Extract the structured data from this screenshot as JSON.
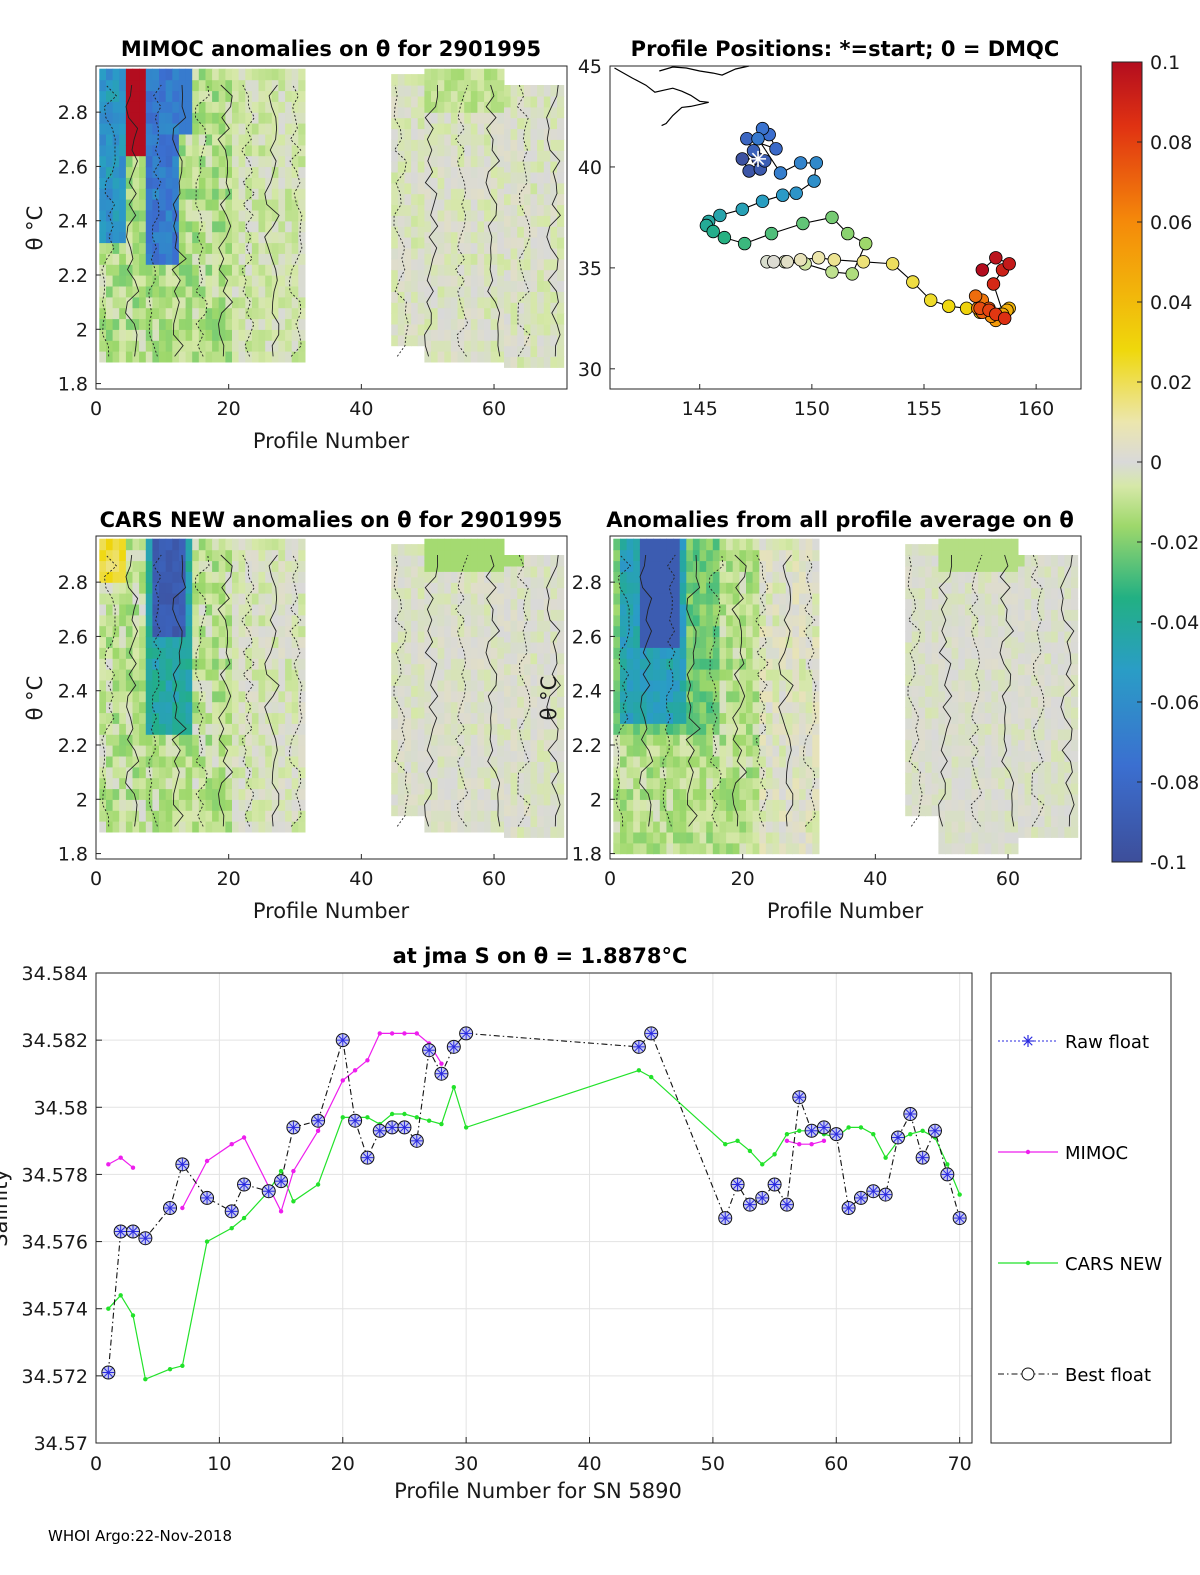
{
  "footer": "WHOI Argo:22-Nov-2018",
  "colorbar": {
    "ticks": [
      "0.1",
      "0.08",
      "0.06",
      "0.04",
      "0.02",
      "0",
      "-0.02",
      "-0.04",
      "-0.06",
      "-0.08",
      "-0.1"
    ],
    "range": [
      -0.1,
      0.1
    ]
  },
  "panels": {
    "mimoc": {
      "title": "MIMOC anomalies on θ  for 2901995",
      "xlabel": "Profile Number",
      "ylabel": "θ °C"
    },
    "positions": {
      "title": "Profile Positions: *=start; 0 = DMQC"
    },
    "cars": {
      "title": "CARS NEW anomalies on θ for 2901995",
      "xlabel": "Profile Number",
      "ylabel": "θ °C"
    },
    "allavg": {
      "title": "Anomalies from all profile average on θ",
      "xlabel": "Profile Number",
      "ylabel": "θ °C"
    }
  },
  "chart_data": [
    {
      "id": "mimoc",
      "type": "heatmap",
      "title": "MIMOC anomalies on θ  for 2901995",
      "xlabel": "Profile Number",
      "ylabel": "θ °C",
      "xlim": [
        0,
        71
      ],
      "ylim": [
        1.78,
        2.97
      ],
      "xticks": [
        "0",
        "20",
        "40",
        "60"
      ],
      "yticks": [
        "1.8",
        "2",
        "2.2",
        "2.4",
        "2.6",
        "2.8"
      ]
    },
    {
      "id": "positions",
      "type": "scatter",
      "title": "Profile Positions: *=start; 0 = DMQC",
      "xlim": [
        141,
        162
      ],
      "ylim": [
        29,
        45
      ],
      "xticks": [
        "145",
        "150",
        "155",
        "160"
      ],
      "yticks": [
        "30",
        "35",
        "40",
        "45"
      ],
      "lon": [
        147.6,
        146.9,
        147.2,
        147.7,
        147.9,
        147.4,
        147.1,
        148.4,
        148.1,
        147.8,
        147.6,
        148.6,
        149.5,
        150.2,
        150.1,
        149.3,
        148.7,
        147.8,
        146.9,
        145.9,
        145.4,
        145.3,
        145.6,
        146.1,
        147.0,
        148.2,
        149.6,
        150.9,
        151.6,
        152.4,
        151.8,
        150.9,
        149.7,
        148.8,
        148.0,
        148.3,
        148.9,
        149.5,
        150.3,
        151.0,
        152.3,
        153.6,
        154.5,
        155.3,
        156.1,
        156.9,
        157.5,
        158.0,
        158.4,
        158.8,
        158.7,
        158.5,
        158.3,
        158.2,
        158.0,
        157.6,
        157.4,
        157.6,
        157.3,
        157.6,
        157.9,
        157.5,
        157.9,
        158.2,
        158.6,
        158.1,
        158.5,
        158.8,
        158.2,
        157.6
      ],
      "lat": [
        40.4,
        40.4,
        39.8,
        39.9,
        40.3,
        40.8,
        41.4,
        40.9,
        41.6,
        41.9,
        41.4,
        39.7,
        40.2,
        40.2,
        39.3,
        38.7,
        38.6,
        38.3,
        37.9,
        37.6,
        37.3,
        37.1,
        36.8,
        36.5,
        36.2,
        36.7,
        37.2,
        37.5,
        36.7,
        36.2,
        34.7,
        34.8,
        35.2,
        35.3,
        35.3,
        35.3,
        35.3,
        35.4,
        35.5,
        35.4,
        35.3,
        35.2,
        34.3,
        33.4,
        33.1,
        33.0,
        32.8,
        32.6,
        32.7,
        33.0,
        32.9,
        32.7,
        32.5,
        32.4,
        32.6,
        32.9,
        33.0,
        33.4,
        33.6,
        32.8,
        33.0,
        33.0,
        32.9,
        32.7,
        32.5,
        34.2,
        34.9,
        35.2,
        35.5,
        34.9
      ],
      "coast": [
        [
          141.2,
          44.9
        ],
        [
          142.0,
          44.4
        ],
        [
          142.6,
          44.05
        ],
        [
          143.0,
          43.7
        ],
        [
          143.4,
          43.8
        ],
        [
          143.8,
          43.9
        ],
        [
          144.2,
          43.75
        ],
        [
          144.6,
          43.55
        ],
        [
          145.0,
          43.25
        ],
        [
          145.4,
          43.2
        ],
        [
          145.0,
          43.1
        ],
        [
          144.6,
          43.0
        ],
        [
          144.2,
          42.95
        ],
        [
          143.8,
          42.55
        ],
        [
          143.5,
          42.15
        ],
        [
          143.3,
          42.05
        ]
      ],
      "coast2": [
        [
          143.2,
          44.75
        ],
        [
          143.8,
          44.95
        ],
        [
          144.4,
          44.9
        ],
        [
          145.0,
          44.75
        ],
        [
          145.6,
          44.65
        ],
        [
          146.0,
          44.55
        ],
        [
          146.6,
          44.85
        ],
        [
          147.2,
          45.0
        ]
      ]
    },
    {
      "id": "cars",
      "type": "heatmap",
      "title": "CARS NEW anomalies on θ for 2901995",
      "xlabel": "Profile Number",
      "ylabel": "θ °C",
      "xlim": [
        0,
        71
      ],
      "ylim": [
        1.78,
        2.97
      ],
      "xticks": [
        "0",
        "20",
        "40",
        "60"
      ],
      "yticks": [
        "1.8",
        "2",
        "2.2",
        "2.4",
        "2.6",
        "2.8"
      ]
    },
    {
      "id": "allavg",
      "type": "heatmap",
      "title": "Anomalies from all profile average on θ",
      "xlabel": "Profile Number",
      "ylabel": "θ °C",
      "xlim": [
        0,
        71
      ],
      "ylim": [
        1.78,
        2.97
      ],
      "xticks": [
        "0",
        "20",
        "40",
        "60"
      ],
      "yticks": [
        "1.8",
        "2",
        "2.2",
        "2.4",
        "2.6",
        "2.8"
      ]
    },
    {
      "id": "salinity",
      "type": "line",
      "title": "at jma S on θ = 1.8878°C",
      "xlabel": "Profile Number for SN 5890",
      "ylabel": "Salinity",
      "xlim": [
        0,
        71
      ],
      "ylim": [
        34.57,
        34.584
      ],
      "xticks": [
        "0",
        "10",
        "20",
        "30",
        "40",
        "50",
        "60",
        "70"
      ],
      "yticks": [
        "34.57",
        "34.572",
        "34.574",
        "34.576",
        "34.578",
        "34.58",
        "34.582",
        "34.584"
      ],
      "legend": [
        "Raw float",
        "MIMOC",
        "CARS NEW",
        "Best float"
      ],
      "series": [
        {
          "name": "Best float",
          "x": [
            1,
            2,
            3,
            4,
            6,
            7,
            9,
            11,
            12,
            14,
            15,
            16,
            18,
            20,
            21,
            22,
            23,
            24,
            25,
            26,
            27,
            28,
            29,
            30,
            44,
            45,
            51,
            52,
            53,
            54,
            55,
            56,
            57,
            58,
            59,
            60,
            61,
            62,
            63,
            64,
            65,
            66,
            67,
            68,
            69,
            70
          ],
          "y": [
            34.5721,
            34.5763,
            34.5763,
            34.5761,
            34.577,
            34.5783,
            34.5773,
            34.5769,
            34.5777,
            34.5775,
            34.5778,
            34.5794,
            34.5796,
            34.582,
            34.5796,
            34.5785,
            34.5793,
            34.5794,
            34.5794,
            34.579,
            34.5817,
            34.581,
            34.5818,
            34.5822,
            34.5818,
            34.5822,
            34.5767,
            34.5777,
            34.5771,
            34.5773,
            34.5777,
            34.5771,
            34.5803,
            34.5793,
            34.5794,
            34.5792,
            34.577,
            34.5773,
            34.5775,
            34.5774,
            34.5791,
            34.5798,
            34.5785,
            34.5793,
            34.578,
            34.5767
          ]
        },
        {
          "name": "MIMOC",
          "x": [
            1,
            2,
            3,
            null,
            7,
            9,
            11,
            12,
            15,
            16,
            18,
            20,
            21,
            22,
            23,
            24,
            25,
            26,
            27,
            28,
            null,
            56,
            57,
            58,
            59
          ],
          "y": [
            34.5783,
            34.5785,
            34.5782,
            null,
            34.577,
            34.5784,
            34.5789,
            34.5791,
            34.5769,
            34.5781,
            34.5793,
            34.5808,
            34.5811,
            34.5814,
            34.5822,
            34.5822,
            34.5822,
            34.5822,
            34.5819,
            34.5813,
            null,
            34.579,
            34.5789,
            34.5789,
            34.579
          ]
        },
        {
          "name": "CARS NEW",
          "x": [
            1,
            2,
            3,
            4,
            6,
            7,
            9,
            11,
            12,
            14,
            15,
            16,
            18,
            20,
            21,
            22,
            23,
            24,
            25,
            26,
            27,
            28,
            29,
            30,
            44,
            45,
            51,
            52,
            53,
            54,
            55,
            56,
            57,
            58,
            59,
            60,
            61,
            62,
            63,
            64,
            65,
            66,
            67,
            68,
            69,
            70
          ],
          "y": [
            34.574,
            34.5744,
            34.5738,
            34.5719,
            34.5722,
            34.5723,
            34.576,
            34.5764,
            34.5767,
            34.5775,
            34.5781,
            34.5772,
            34.5777,
            34.5797,
            34.5797,
            34.5797,
            34.5795,
            34.5798,
            34.5798,
            34.5797,
            34.5796,
            34.5795,
            34.5806,
            34.5794,
            34.5811,
            34.5809,
            34.5789,
            34.579,
            34.5787,
            34.5783,
            34.5786,
            34.5792,
            34.5793,
            34.5793,
            34.5792,
            34.5791,
            34.5794,
            34.5794,
            34.5792,
            34.5785,
            34.579,
            34.5792,
            34.5793,
            34.5791,
            34.5783,
            34.5774
          ]
        }
      ]
    }
  ]
}
